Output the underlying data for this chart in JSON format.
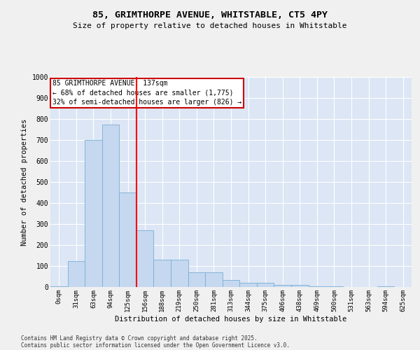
{
  "title": "85, GRIMTHORPE AVENUE, WHITSTABLE, CT5 4PY",
  "subtitle": "Size of property relative to detached houses in Whitstable",
  "xlabel": "Distribution of detached houses by size in Whitstable",
  "ylabel": "Number of detached properties",
  "categories": [
    "0sqm",
    "31sqm",
    "63sqm",
    "94sqm",
    "125sqm",
    "156sqm",
    "188sqm",
    "219sqm",
    "250sqm",
    "281sqm",
    "313sqm",
    "344sqm",
    "375sqm",
    "406sqm",
    "438sqm",
    "469sqm",
    "500sqm",
    "531sqm",
    "563sqm",
    "594sqm",
    "625sqm"
  ],
  "values": [
    5,
    125,
    700,
    775,
    450,
    270,
    130,
    130,
    70,
    70,
    35,
    20,
    20,
    10,
    10,
    5,
    5,
    0,
    0,
    5,
    0
  ],
  "bar_color": "#c5d8f0",
  "bar_edge_color": "#7aadd4",
  "red_line_x": 4.5,
  "annotation_text": "85 GRIMTHORPE AVENUE: 137sqm\n← 68% of detached houses are smaller (1,775)\n32% of semi-detached houses are larger (826) →",
  "annotation_box_color": "#ffffff",
  "annotation_box_edge_color": "#cc0000",
  "ylim": [
    0,
    1000
  ],
  "yticks": [
    0,
    100,
    200,
    300,
    400,
    500,
    600,
    700,
    800,
    900,
    1000
  ],
  "background_color": "#dce6f5",
  "grid_color": "#ffffff",
  "fig_bg_color": "#f0f0f0",
  "footer_line1": "Contains HM Land Registry data © Crown copyright and database right 2025.",
  "footer_line2": "Contains public sector information licensed under the Open Government Licence v3.0."
}
